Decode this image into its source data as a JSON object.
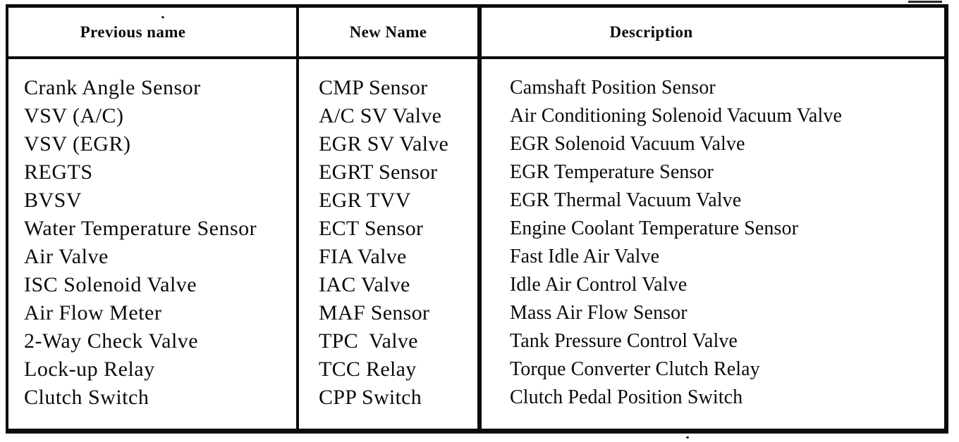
{
  "table": {
    "headers": {
      "previous_name": "Previous name",
      "new_name": "New Name",
      "description": "Description"
    },
    "rows": [
      [
        "Crank Angle Sensor",
        "CMP Sensor",
        "Camshaft Position Sensor"
      ],
      [
        "VSV (A/C)",
        "A/C SV Valve",
        "Air Conditioning Solenoid Vacuum Valve"
      ],
      [
        "VSV (EGR)",
        "EGR SV Valve",
        "EGR Solenoid Vacuum Valve"
      ],
      [
        "REGTS",
        "EGRT Sensor",
        "EGR Temperature Sensor"
      ],
      [
        "BVSV",
        "EGR TVV",
        "EGR Thermal Vacuum Valve"
      ],
      [
        "Water Temperature Sensor",
        "ECT Sensor",
        "Engine Coolant Temperature Sensor"
      ],
      [
        "Air Valve",
        "FIA Valve",
        "Fast Idle Air Valve"
      ],
      [
        "ISC Solenoid Valve",
        "IAC Valve",
        "Idle Air Control Valve"
      ],
      [
        "Air Flow Meter",
        "MAF Sensor",
        "Mass Air Flow Sensor"
      ],
      [
        "2-Way Check Valve",
        "TPC  Valve",
        "Tank Pressure Control Valve"
      ],
      [
        "Lock-up Relay",
        "TCC Relay",
        "Torque Converter Clutch Relay"
      ],
      [
        "Clutch Switch",
        "CPP Switch",
        "Clutch Pedal Position Switch"
      ]
    ]
  }
}
